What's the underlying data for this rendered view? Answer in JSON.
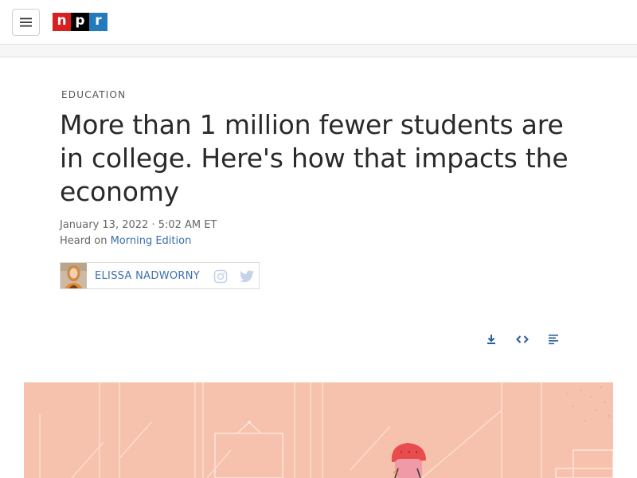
{
  "header": {
    "logo_letters": [
      "n",
      "p",
      "r"
    ],
    "logo_colors": [
      "#d62021",
      "#000000",
      "#237bbd"
    ],
    "menu_icon": "hamburger-menu-icon"
  },
  "article": {
    "slug": "EDUCATION",
    "title": "More than 1 million fewer students are in college. Here's how that impacts the economy",
    "dateline": "January 13, 2022 · 5:02 AM ET",
    "heard_prefix": "Heard on",
    "program": "Morning Edition"
  },
  "byline": {
    "author": "ELISSA NADWORNY",
    "social_icons": [
      "instagram-icon",
      "twitter-icon"
    ]
  },
  "tools": {
    "icons": [
      "download-icon",
      "embed-icon",
      "transcript-icon"
    ]
  },
  "colors": {
    "link": "#3a6fad",
    "hero_background": "#f7c2ad",
    "tool_icon": "#2a5c9e",
    "social_icon": "#c5d3e8"
  }
}
